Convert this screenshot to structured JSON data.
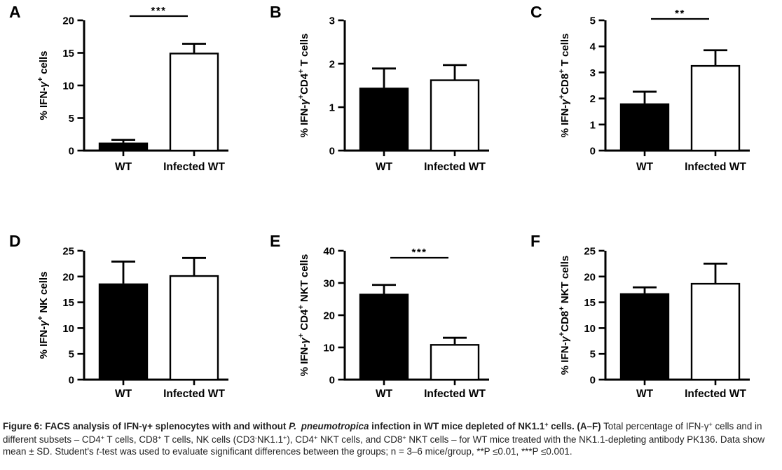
{
  "figure": {
    "caption_segments": [
      {
        "t": "Figure 6: FACS analysis of IFN-γ+ splenocytes with and without ",
        "b": true
      },
      {
        "t": "P. pneumotropica",
        "b": true,
        "i": true
      },
      {
        "t": " infection in WT mice depleted of NK1.1",
        "b": true
      },
      {
        "t": "+",
        "b": true,
        "sup": true
      },
      {
        "t": " cells. (A–F)",
        "b": true
      },
      {
        "t": " Total percentage of IFN-γ"
      },
      {
        "t": "+",
        "sup": true
      },
      {
        "t": " cells and in different subsets – CD4"
      },
      {
        "t": "+",
        "sup": true
      },
      {
        "t": " T cells, CD8"
      },
      {
        "t": "+",
        "sup": true
      },
      {
        "t": " T cells, NK cells (CD3"
      },
      {
        "t": "-",
        "sup": true
      },
      {
        "t": "NK1.1"
      },
      {
        "t": "+",
        "sup": true
      },
      {
        "t": "), CD4"
      },
      {
        "t": "+",
        "sup": true
      },
      {
        "t": " NKT cells, and CD8"
      },
      {
        "t": "+",
        "sup": true
      },
      {
        "t": " NKT cells – for WT mice treated with the NK1.1-depleting antibody PK136. Data show mean ± SD. Student's "
      },
      {
        "t": "t",
        "i": true
      },
      {
        "t": "-test was used to evaluate significant differences between the groups; n = 3–6 mice/group, **P ≤0.01, ***P ≤0.001."
      }
    ]
  },
  "chart_data": [
    {
      "panel": "A",
      "type": "bar",
      "ylabel_plain": "% IFN-γ+ cells",
      "ylabel_segments": [
        {
          "t": "% IFN-"
        },
        {
          "t": "γ",
          "i": true
        },
        {
          "t": "+",
          "sup": true
        },
        {
          "t": " cells"
        }
      ],
      "ylim": [
        0,
        20
      ],
      "yticks": [
        0,
        5,
        10,
        15,
        20
      ],
      "categories": [
        "WT",
        "Infected WT"
      ],
      "series": [
        {
          "name": "WT",
          "value": 1.1,
          "sd_upper": 0.55,
          "fill": "#000000"
        },
        {
          "name": "Infected WT",
          "value": 14.9,
          "sd_upper": 1.5,
          "fill": "#ffffff"
        }
      ],
      "significance": {
        "label": "***",
        "line_y": 23
      }
    },
    {
      "panel": "B",
      "type": "bar",
      "ylabel_plain": "% IFN-γ+CD4+ T cells",
      "ylabel_segments": [
        {
          "t": "% IFN-"
        },
        {
          "t": "γ",
          "i": true
        },
        {
          "t": "+",
          "sup": true
        },
        {
          "t": "CD4"
        },
        {
          "t": "+",
          "sup": true
        },
        {
          "t": " T cells"
        }
      ],
      "ylim": [
        0,
        3
      ],
      "yticks": [
        0,
        1,
        2,
        3
      ],
      "categories": [
        "WT",
        "Infected WT"
      ],
      "series": [
        {
          "name": "WT",
          "value": 1.43,
          "sd_upper": 0.46,
          "fill": "#000000"
        },
        {
          "name": "Infected WT",
          "value": 1.62,
          "sd_upper": 0.35,
          "fill": "#ffffff"
        }
      ],
      "significance": null
    },
    {
      "panel": "C",
      "type": "bar",
      "ylabel_plain": "% IFN-γ+CD8+ T cells",
      "ylabel_segments": [
        {
          "t": "% IFN-"
        },
        {
          "t": "γ",
          "i": true
        },
        {
          "t": "+",
          "sup": true
        },
        {
          "t": "CD8"
        },
        {
          "t": "+",
          "sup": true
        },
        {
          "t": " T cells"
        }
      ],
      "ylim": [
        0,
        5
      ],
      "yticks": [
        0,
        1,
        2,
        3,
        4,
        5
      ],
      "categories": [
        "WT",
        "Infected WT"
      ],
      "series": [
        {
          "name": "WT",
          "value": 1.78,
          "sd_upper": 0.48,
          "fill": "#000000"
        },
        {
          "name": "Infected WT",
          "value": 3.25,
          "sd_upper": 0.6,
          "fill": "#ffffff"
        }
      ],
      "significance": {
        "label": "**",
        "line_y": 27
      }
    },
    {
      "panel": "D",
      "type": "bar",
      "ylabel_plain": "% IFN-γ+ NK cells",
      "ylabel_segments": [
        {
          "t": "% IFN-"
        },
        {
          "t": "γ",
          "i": true
        },
        {
          "t": "+",
          "sup": true
        },
        {
          "t": " NK cells"
        }
      ],
      "ylim": [
        0,
        25
      ],
      "yticks": [
        0,
        5,
        10,
        15,
        20,
        25
      ],
      "categories": [
        "WT",
        "Infected WT"
      ],
      "series": [
        {
          "name": "WT",
          "value": 18.5,
          "sd_upper": 4.4,
          "fill": "#000000"
        },
        {
          "name": "Infected WT",
          "value": 20.1,
          "sd_upper": 3.5,
          "fill": "#ffffff"
        }
      ],
      "significance": null
    },
    {
      "panel": "E",
      "type": "bar",
      "ylabel_plain": "% IFN-γ+ CD4+ NKT cells",
      "ylabel_segments": [
        {
          "t": "% IFN-"
        },
        {
          "t": "γ",
          "i": true
        },
        {
          "t": "+",
          "sup": true
        },
        {
          "t": " CD4"
        },
        {
          "t": "+",
          "sup": true
        },
        {
          "t": " NKT cells"
        }
      ],
      "ylim": [
        0,
        40
      ],
      "yticks": [
        0,
        10,
        20,
        30,
        40
      ],
      "categories": [
        "WT",
        "Infected WT"
      ],
      "series": [
        {
          "name": "WT",
          "value": 26.4,
          "sd_upper": 3.0,
          "fill": "#000000"
        },
        {
          "name": "Infected WT",
          "value": 10.8,
          "sd_upper": 2.2,
          "fill": "#ffffff"
        }
      ],
      "significance": {
        "label": "***",
        "line_y": 48
      }
    },
    {
      "panel": "F",
      "type": "bar",
      "ylabel_plain": "% IFN-γ+CD8+ NKT cells",
      "ylabel_segments": [
        {
          "t": "% IFN-"
        },
        {
          "t": "γ",
          "i": true
        },
        {
          "t": "+",
          "sup": true
        },
        {
          "t": "CD8"
        },
        {
          "t": "+",
          "sup": true
        },
        {
          "t": " NKT cells"
        }
      ],
      "ylim": [
        0,
        25
      ],
      "yticks": [
        0,
        5,
        10,
        15,
        20,
        25
      ],
      "categories": [
        "WT",
        "Infected WT"
      ],
      "series": [
        {
          "name": "WT",
          "value": 16.6,
          "sd_upper": 1.3,
          "fill": "#000000"
        },
        {
          "name": "Infected WT",
          "value": 18.6,
          "sd_upper": 3.9,
          "fill": "#ffffff"
        }
      ],
      "significance": null
    }
  ],
  "style": {
    "axis_color": "#000000",
    "bar_fill_wt": "#000000",
    "bar_fill_infected": "#ffffff",
    "text_color": "#222222"
  }
}
